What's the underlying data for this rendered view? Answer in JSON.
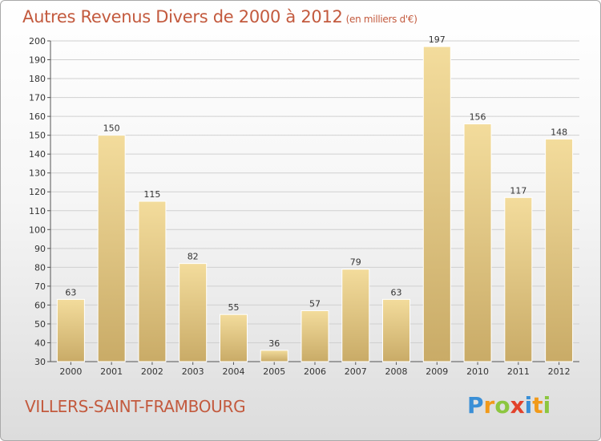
{
  "header": {
    "title": "Autres Revenus Divers de 2000 à 2012",
    "unit": "(en milliers d'€)"
  },
  "footer": {
    "town": "VILLERS-SAINT-FRAMBOURG",
    "logo_letters": [
      {
        "char": "P",
        "color": "#3a8fd6"
      },
      {
        "char": "r",
        "color": "#f19a1a"
      },
      {
        "char": "o",
        "color": "#8cc63f"
      },
      {
        "char": "x",
        "color": "#e2422b"
      },
      {
        "char": "i",
        "color": "#3a8fd6"
      },
      {
        "char": "t",
        "color": "#f19a1a"
      },
      {
        "char": "i",
        "color": "#8cc63f"
      }
    ]
  },
  "colors": {
    "bar_top": "#f3dc9c",
    "bar_bottom": "#c9ab67",
    "grid": "#d0d0d0",
    "title": "#c35a3e"
  },
  "chart_data": {
    "type": "bar",
    "title": "Autres Revenus Divers de 2000 à 2012",
    "unit": "(en milliers d'€)",
    "categories": [
      "2000",
      "2001",
      "2002",
      "2003",
      "2004",
      "2005",
      "2006",
      "2007",
      "2008",
      "2009",
      "2010",
      "2011",
      "2012"
    ],
    "values": [
      63,
      150,
      115,
      82,
      55,
      36,
      57,
      79,
      63,
      197,
      156,
      117,
      148
    ],
    "ylim": [
      30,
      200
    ],
    "yticks": [
      30,
      40,
      50,
      60,
      70,
      80,
      90,
      100,
      110,
      120,
      130,
      140,
      150,
      160,
      170,
      180,
      190,
      200
    ],
    "grid": true,
    "data_labels": true
  }
}
